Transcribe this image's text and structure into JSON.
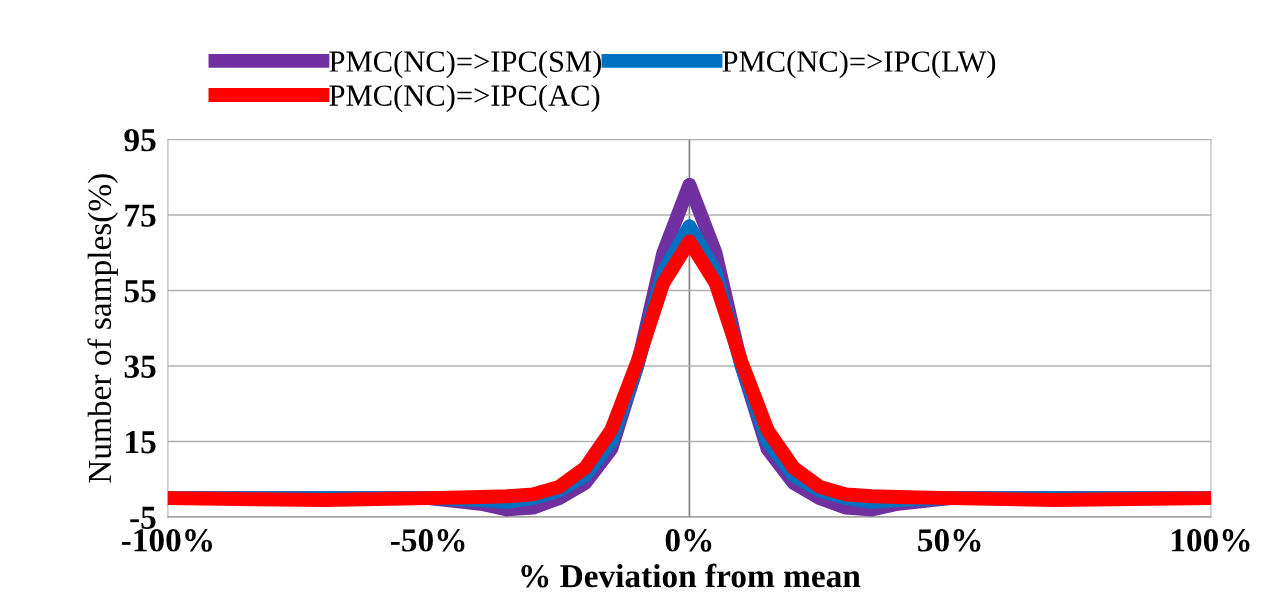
{
  "chart_data": {
    "type": "line",
    "xlabel": "% Deviation from mean",
    "ylabel": "Number of samples(%)",
    "xlim": [
      -100,
      100
    ],
    "xticks": [
      {
        "value": -100,
        "label": "-100%"
      },
      {
        "value": -50,
        "label": "-50%"
      },
      {
        "value": 0,
        "label": "0%"
      },
      {
        "value": 50,
        "label": "50%"
      },
      {
        "value": 100,
        "label": "100%"
      }
    ],
    "ylim": [
      -5,
      95
    ],
    "yticks": [
      -5,
      15,
      35,
      55,
      75,
      95
    ],
    "grid": "y",
    "legend": "top",
    "marker": "none",
    "line_style": "solid",
    "ref_lines": [
      {
        "axis": "x",
        "value": 0,
        "color": "#808080"
      }
    ],
    "series": [
      {
        "name": "PMC(NC)=>IPC(SM)",
        "color": "#7030a0",
        "x": [
          -100,
          -50,
          -40,
          -35,
          -30,
          -25,
          -20,
          -15,
          -10,
          -5,
          0,
          5,
          10,
          15,
          20,
          25,
          30,
          35,
          40,
          50,
          100
        ],
        "values": [
          0,
          0,
          -1.5,
          -3,
          -2.5,
          0,
          4,
          13,
          35,
          65,
          83,
          65,
          35,
          13,
          4,
          0,
          -2.5,
          -3,
          -1.5,
          0,
          0
        ]
      },
      {
        "name": "PMC(NC)=>IPC(LW)",
        "color": "#0070c0",
        "x": [
          -100,
          -50,
          -40,
          -35,
          -30,
          -25,
          -20,
          -15,
          -10,
          -5,
          0,
          5,
          10,
          15,
          20,
          25,
          30,
          35,
          40,
          50,
          100
        ],
        "values": [
          0,
          0,
          -0.5,
          -1,
          0,
          2,
          6,
          15,
          35,
          60,
          72,
          60,
          35,
          15,
          6,
          2,
          0,
          -1,
          -0.5,
          0,
          0
        ]
      },
      {
        "name": "PMC(NC)=>IPC(AC)",
        "color": "#ff0000",
        "x": [
          -100,
          -70,
          -50,
          -40,
          -35,
          -30,
          -25,
          -20,
          -15,
          -10,
          -5,
          0,
          5,
          10,
          15,
          20,
          25,
          30,
          35,
          40,
          50,
          70,
          100
        ],
        "values": [
          0,
          -0.5,
          0,
          0.3,
          0.5,
          1,
          3,
          8,
          18,
          36,
          57,
          68,
          57,
          36,
          18,
          8,
          3,
          1,
          0.5,
          0.3,
          0,
          -0.5,
          0
        ]
      }
    ]
  }
}
